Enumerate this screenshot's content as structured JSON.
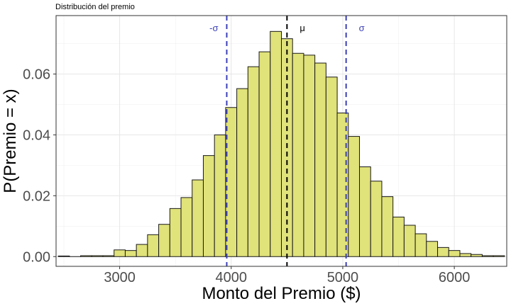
{
  "chart_data": {
    "type": "bar",
    "title": "Distribución del premio",
    "xlabel": "Monto del Premio ($)",
    "ylabel": "P(Premio = x)",
    "xlim": [
      2430,
      6470
    ],
    "ylim": [
      -0.0032,
      0.0792
    ],
    "x_ticks": [
      3000,
      4000,
      5000,
      6000
    ],
    "x_tick_labels": [
      "3000",
      "4000",
      "5000",
      "6000"
    ],
    "y_ticks": [
      0,
      0.02,
      0.04,
      0.06
    ],
    "y_tick_labels": [
      "0.00",
      "0.02",
      "0.04",
      "0.06"
    ],
    "grid": true,
    "bin_width": 100,
    "bins": [
      {
        "x": 2500,
        "p": 0.0002
      },
      {
        "x": 2600,
        "p": 0.0
      },
      {
        "x": 2700,
        "p": 0.0003
      },
      {
        "x": 2800,
        "p": 0.0003
      },
      {
        "x": 2900,
        "p": 0.0003
      },
      {
        "x": 3000,
        "p": 0.0022
      },
      {
        "x": 3100,
        "p": 0.002
      },
      {
        "x": 3200,
        "p": 0.004
      },
      {
        "x": 3300,
        "p": 0.0072
      },
      {
        "x": 3400,
        "p": 0.0106
      },
      {
        "x": 3500,
        "p": 0.0158
      },
      {
        "x": 3600,
        "p": 0.0194
      },
      {
        "x": 3700,
        "p": 0.0252
      },
      {
        "x": 3800,
        "p": 0.0332
      },
      {
        "x": 3900,
        "p": 0.04
      },
      {
        "x": 4000,
        "p": 0.049
      },
      {
        "x": 4100,
        "p": 0.0552
      },
      {
        "x": 4200,
        "p": 0.0624
      },
      {
        "x": 4300,
        "p": 0.0673
      },
      {
        "x": 4400,
        "p": 0.074
      },
      {
        "x": 4500,
        "p": 0.0716
      },
      {
        "x": 4600,
        "p": 0.0668
      },
      {
        "x": 4700,
        "p": 0.0662
      },
      {
        "x": 4800,
        "p": 0.0636
      },
      {
        "x": 4900,
        "p": 0.059
      },
      {
        "x": 5000,
        "p": 0.0472
      },
      {
        "x": 5100,
        "p": 0.0395
      },
      {
        "x": 5200,
        "p": 0.0295
      },
      {
        "x": 5300,
        "p": 0.0248
      },
      {
        "x": 5400,
        "p": 0.0197
      },
      {
        "x": 5500,
        "p": 0.013
      },
      {
        "x": 5600,
        "p": 0.0103
      },
      {
        "x": 5700,
        "p": 0.0075
      },
      {
        "x": 5800,
        "p": 0.005
      },
      {
        "x": 5900,
        "p": 0.003
      },
      {
        "x": 6000,
        "p": 0.002
      },
      {
        "x": 6100,
        "p": 0.001
      },
      {
        "x": 6200,
        "p": 0.0007
      },
      {
        "x": 6300,
        "p": 0.0003
      },
      {
        "x": 6400,
        "p": 0.0003
      }
    ],
    "bar_fill": "#E0E27A",
    "bar_stroke": "#1a1a1a",
    "reference_lines": [
      {
        "label": "-σ",
        "x": 3960,
        "color": "#3B3FB6",
        "style": "dashed",
        "label_side": "left"
      },
      {
        "label": "μ",
        "x": 4500,
        "color": "#000000",
        "style": "dashed",
        "label_side": "right"
      },
      {
        "label": "σ",
        "x": 5030,
        "color": "#3B3FB6",
        "style": "dashed",
        "label_side": "right"
      }
    ]
  }
}
